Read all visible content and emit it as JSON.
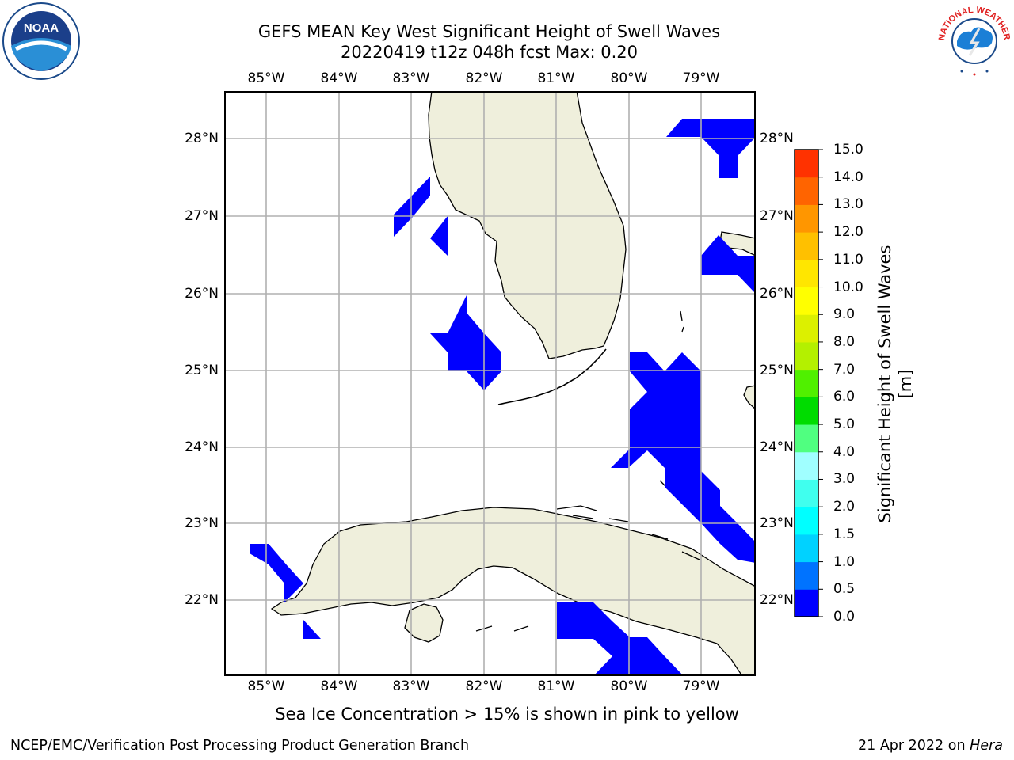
{
  "title_line1": "GEFS MEAN Key West Significant Height of Swell Waves",
  "title_line2": "20220419 t12z 048h fcst   Max: 0.20",
  "lon_labels": [
    "85°W",
    "84°W",
    "83°W",
    "82°W",
    "81°W",
    "80°W",
    "79°W"
  ],
  "lat_labels": [
    "28°N",
    "27°N",
    "26°N",
    "25°N",
    "24°N",
    "23°N",
    "22°N"
  ],
  "colorbar": {
    "title": "Significant Height of Swell Waves [m]",
    "tick_labels": [
      "0.0",
      "0.5",
      "1.0",
      "1.5",
      "2.0",
      "3.0",
      "4.0",
      "5.0",
      "6.0",
      "7.0",
      "8.0",
      "9.0",
      "10.0",
      "11.0",
      "12.0",
      "13.0",
      "14.0",
      "15.0"
    ],
    "colors": [
      "#0000ff",
      "#0073ff",
      "#00d2ff",
      "#00ffff",
      "#40ffee",
      "#a0ffff",
      "#50ff80",
      "#00dc00",
      "#50f000",
      "#b4f000",
      "#dcf000",
      "#ffff00",
      "#ffe600",
      "#ffc000",
      "#ff9600",
      "#ff6400",
      "#ff3200",
      "#ff0000"
    ]
  },
  "note": "Sea Ice Concentration > 15% is shown in pink to yellow",
  "footer_left": "NCEP/EMC/Verification Post Processing Product Generation Branch",
  "footer_date": "21 Apr 2022 on",
  "footer_machine": "Hera",
  "logos": {
    "left": {
      "name": "noaa-logo",
      "text": "NOAA"
    },
    "right": {
      "name": "nws-logo",
      "text": "NATIONAL WEATHER SERVICE"
    }
  },
  "map_colors": {
    "land": "#efefdc",
    "swell": "#0000ff",
    "grid": "#b0b0b0"
  }
}
